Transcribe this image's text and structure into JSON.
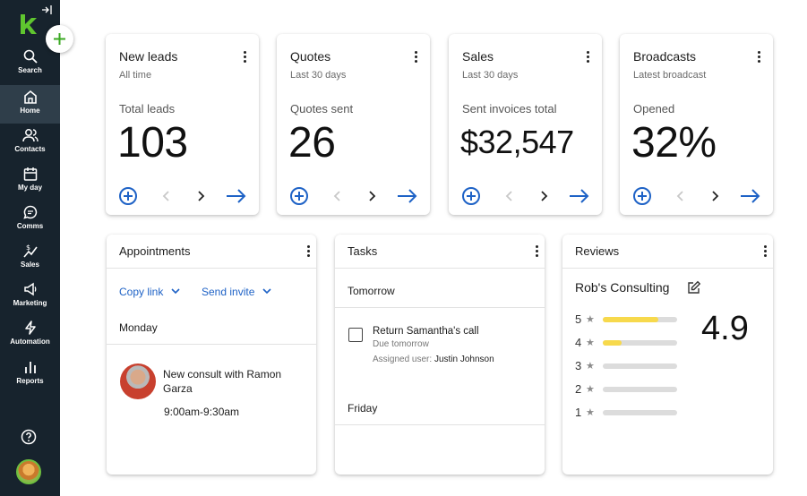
{
  "sidebar": {
    "items": [
      {
        "label": "Search",
        "icon": "search-icon"
      },
      {
        "label": "Home",
        "icon": "home-icon",
        "active": true
      },
      {
        "label": "Contacts",
        "icon": "contacts-icon"
      },
      {
        "label": "My day",
        "icon": "calendar-icon"
      },
      {
        "label": "Comms",
        "icon": "chat-icon"
      },
      {
        "label": "Sales",
        "icon": "sales-icon"
      },
      {
        "label": "Marketing",
        "icon": "megaphone-icon"
      },
      {
        "label": "Automation",
        "icon": "bolt-icon"
      },
      {
        "label": "Reports",
        "icon": "bar-chart-icon"
      }
    ]
  },
  "stats": [
    {
      "title": "New leads",
      "subtitle": "All time",
      "metric_label": "Total leads",
      "value": "103"
    },
    {
      "title": "Quotes",
      "subtitle": "Last 30 days",
      "metric_label": "Quotes sent",
      "value": "26"
    },
    {
      "title": "Sales",
      "subtitle": "Last 30 days",
      "metric_label": "Sent invoices total",
      "value": "$32,547"
    },
    {
      "title": "Broadcasts",
      "subtitle": "Latest broadcast",
      "metric_label": "Opened",
      "value": "32%"
    }
  ],
  "appointments": {
    "title": "Appointments",
    "copy_link": "Copy link",
    "send_invite": "Send invite",
    "day": "Monday",
    "event_title_line1": "New consult with Ramon",
    "event_title_line2": "Garza",
    "event_time": "9:00am-9:30am"
  },
  "tasks": {
    "title": "Tasks",
    "section1": "Tomorrow",
    "task_title": "Return Samantha's call",
    "task_due": "Due tomorrow",
    "task_assigned_label": "Assigned user:",
    "task_assigned_user": "Justin Johnson",
    "section2": "Friday"
  },
  "reviews": {
    "title": "Reviews",
    "business": "Rob's Consulting",
    "rating": "4.9",
    "star_rows": [
      {
        "stars": "5",
        "fill": 0.75
      },
      {
        "stars": "4",
        "fill": 0.25
      },
      {
        "stars": "3",
        "fill": 0
      },
      {
        "stars": "2",
        "fill": 0
      },
      {
        "stars": "1",
        "fill": 0
      }
    ]
  },
  "colors": {
    "accent": "#1e62c6",
    "brand_green": "#5fc52f",
    "sidebar": "#17232d",
    "review_bar": "#f7d94c"
  }
}
